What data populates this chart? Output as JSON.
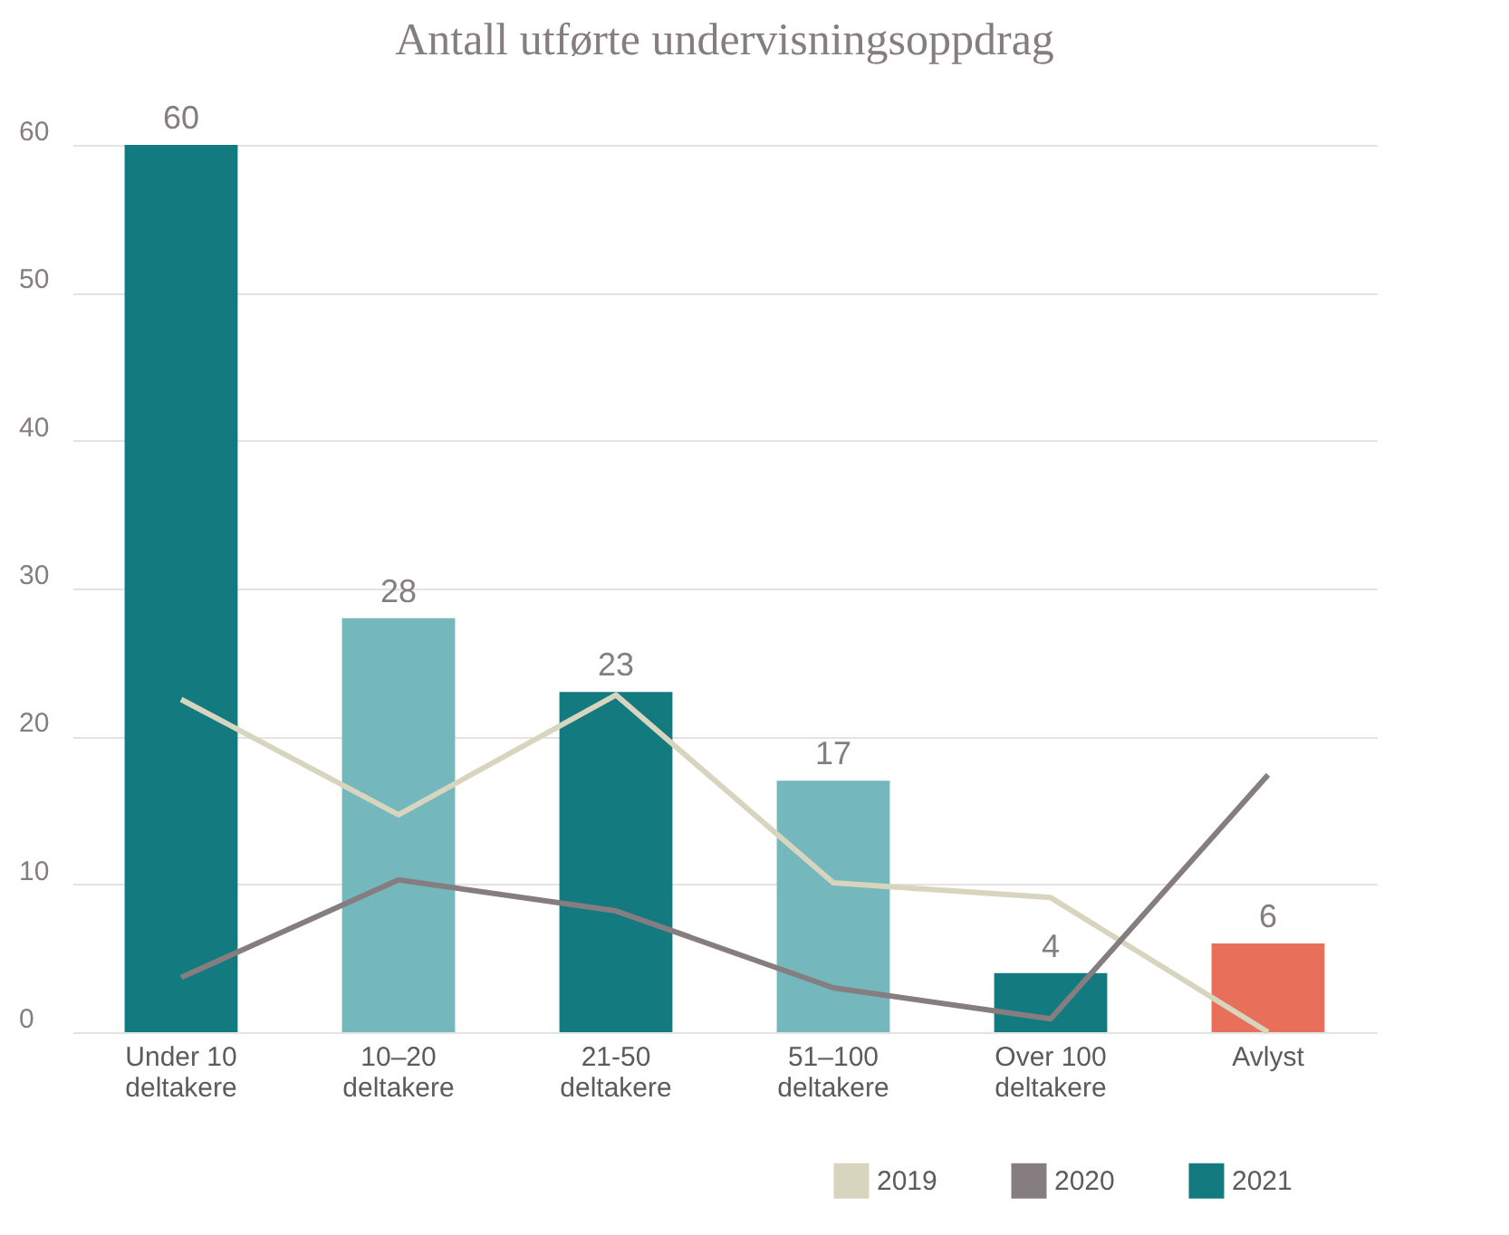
{
  "chart_data": {
    "type": "bar",
    "title": "Antall utførte undervisningsoppdrag",
    "categories": [
      "Under 10\ndeltakere",
      "10–20\ndeltakere",
      "21-50\ndeltakere",
      "51–100\ndeltakere",
      "Over 100\ndeltakere",
      "Avlyst"
    ],
    "series": [
      {
        "name": "2019",
        "type": "line",
        "color": "#d8d5bf",
        "values": [
          22.5,
          14.7,
          22.8,
          10.1,
          9.1,
          0
        ]
      },
      {
        "name": "2020",
        "type": "line",
        "color": "#857d7f",
        "values": [
          3.7,
          10.3,
          8.2,
          3,
          0.9,
          17.4
        ]
      },
      {
        "name": "2021",
        "color": "#137a80",
        "colors": [
          "#137a80",
          "#74b7bc",
          "#137a80",
          "#74b7bc",
          "#137a80",
          "#e8705a"
        ],
        "values": [
          60,
          28,
          23,
          17,
          4,
          6
        ],
        "value_labels": [
          "60",
          "28",
          "23",
          "17",
          "4",
          "6"
        ]
      }
    ],
    "ylim": [
      0,
      60
    ],
    "yticks": [
      0,
      10,
      20,
      30,
      40,
      50,
      60
    ],
    "grid": "y",
    "legend": "bottom right"
  }
}
